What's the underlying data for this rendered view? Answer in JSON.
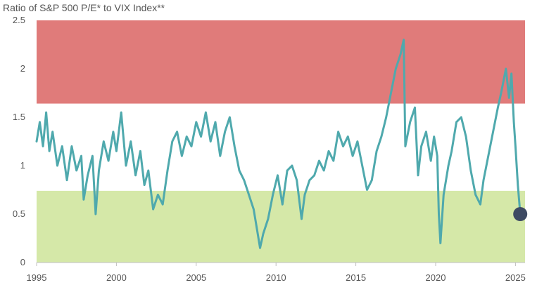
{
  "chart_data": {
    "type": "line",
    "title": "Ratio of S&P 500 P/E* to VIX Index**",
    "xlabel": "",
    "ylabel": "",
    "xlim": [
      1995,
      2025.6
    ],
    "ylim": [
      0,
      2.5
    ],
    "x_ticks": [
      "1995",
      "2000",
      "2005",
      "2010",
      "2015",
      "2020",
      "2025"
    ],
    "y_ticks": [
      "0",
      "0.5",
      "1",
      "1.5",
      "2",
      "2.5"
    ],
    "bands": [
      {
        "name": "high",
        "y0": 1.64,
        "y1": 2.5,
        "color": "#e07b7a"
      },
      {
        "name": "mid",
        "y0": 0.74,
        "y1": 1.64,
        "color": "#ffffff"
      },
      {
        "name": "low",
        "y0": 0,
        "y1": 0.74,
        "color": "#d5e8a8"
      }
    ],
    "series": [
      {
        "color": "#4fa9ad",
        "x": [
          1995.0,
          1995.2,
          1995.4,
          1995.6,
          1995.8,
          1996.0,
          1996.3,
          1996.6,
          1996.9,
          1997.2,
          1997.5,
          1997.8,
          1997.95,
          1998.2,
          1998.5,
          1998.7,
          1998.9,
          1999.2,
          1999.5,
          1999.8,
          2000.0,
          2000.3,
          2000.6,
          2000.9,
          2001.2,
          2001.5,
          2001.75,
          2002.0,
          2002.3,
          2002.6,
          2002.9,
          2003.2,
          2003.5,
          2003.8,
          2004.1,
          2004.4,
          2004.7,
          2005.0,
          2005.3,
          2005.6,
          2005.9,
          2006.2,
          2006.5,
          2006.8,
          2007.1,
          2007.4,
          2007.7,
          2008.0,
          2008.3,
          2008.6,
          2008.8,
          2009.0,
          2009.2,
          2009.5,
          2009.8,
          2010.1,
          2010.4,
          2010.7,
          2011.0,
          2011.3,
          2011.6,
          2011.8,
          2012.1,
          2012.4,
          2012.7,
          2013.0,
          2013.3,
          2013.6,
          2013.9,
          2014.2,
          2014.5,
          2014.8,
          2015.1,
          2015.4,
          2015.7,
          2016.0,
          2016.3,
          2016.6,
          2016.9,
          2017.2,
          2017.5,
          2017.8,
          2018.0,
          2018.1,
          2018.4,
          2018.7,
          2018.9,
          2019.1,
          2019.4,
          2019.7,
          2019.9,
          2020.1,
          2020.2,
          2020.3,
          2020.5,
          2020.8,
          2021.0,
          2021.3,
          2021.6,
          2021.9,
          2022.2,
          2022.5,
          2022.8,
          2023.0,
          2023.3,
          2023.6,
          2023.9,
          2024.1,
          2024.4,
          2024.6,
          2024.75,
          2024.9,
          2025.0,
          2025.15,
          2025.3
        ],
        "values": [
          1.25,
          1.45,
          1.2,
          1.55,
          1.15,
          1.35,
          1.0,
          1.2,
          0.85,
          1.2,
          0.95,
          1.1,
          0.65,
          0.9,
          1.1,
          0.5,
          0.95,
          1.25,
          1.05,
          1.35,
          1.15,
          1.55,
          1.0,
          1.25,
          0.9,
          1.15,
          0.8,
          0.95,
          0.55,
          0.7,
          0.6,
          0.95,
          1.25,
          1.35,
          1.1,
          1.3,
          1.2,
          1.45,
          1.3,
          1.55,
          1.25,
          1.45,
          1.1,
          1.35,
          1.5,
          1.2,
          0.95,
          0.85,
          0.7,
          0.55,
          0.35,
          0.15,
          0.3,
          0.45,
          0.7,
          0.9,
          0.6,
          0.95,
          1.0,
          0.85,
          0.45,
          0.7,
          0.85,
          0.9,
          1.05,
          0.95,
          1.15,
          1.05,
          1.35,
          1.2,
          1.3,
          1.1,
          1.25,
          1.0,
          0.75,
          0.85,
          1.15,
          1.3,
          1.5,
          1.75,
          2.0,
          2.15,
          2.3,
          1.2,
          1.45,
          1.6,
          0.9,
          1.2,
          1.35,
          1.05,
          1.3,
          1.1,
          0.5,
          0.2,
          0.7,
          1.0,
          1.15,
          1.45,
          1.5,
          1.3,
          0.95,
          0.7,
          0.6,
          0.85,
          1.1,
          1.35,
          1.6,
          1.75,
          2.0,
          1.7,
          1.95,
          1.45,
          1.2,
          0.8,
          0.5
        ]
      }
    ],
    "end_marker": {
      "x": 2025.3,
      "y": 0.5,
      "color": "#3e4a63"
    }
  }
}
